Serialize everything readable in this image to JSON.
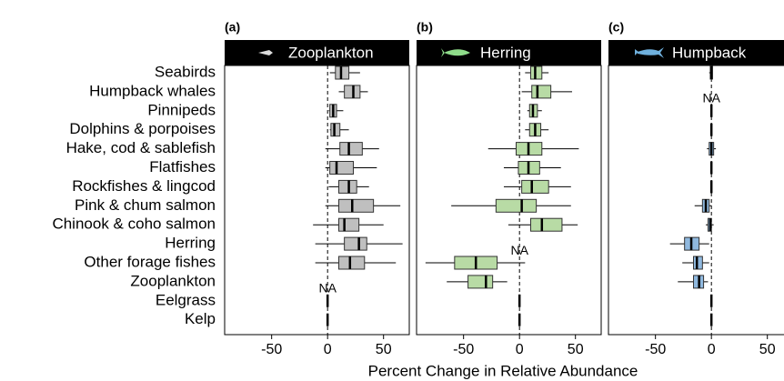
{
  "chart_data": {
    "type": "boxplot",
    "xlabel": "Percent Change in Relative Abundance",
    "categories": [
      "Seabirds",
      "Humpback whales",
      "Pinnipeds",
      "Dolphins & porpoises",
      "Hake, cod & sablefish",
      "Flatfishes",
      "Rockfishes & lingcod",
      "Pink & chum salmon",
      "Chinook & coho salmon",
      "Herring",
      "Other forage fishes",
      "Zooplankton",
      "Eelgrass",
      "Kelp"
    ],
    "xlim": [
      -92,
      73
    ],
    "xticks": [
      -50,
      0,
      50
    ],
    "missing_label": "NA",
    "panels": [
      {
        "label": "(a)",
        "title": "Zooplankton",
        "color": "#bfbfbf",
        "low": [
          2,
          10,
          1,
          2,
          -2,
          -2,
          1,
          -2,
          -13,
          -11,
          -11,
          null,
          0,
          0
        ],
        "q1": [
          7,
          15,
          2,
          3,
          11,
          2,
          10,
          10,
          10,
          15,
          10,
          null,
          0,
          0
        ],
        "median": [
          12,
          23,
          5,
          6,
          19,
          8,
          19,
          22,
          15,
          28,
          20,
          null,
          0,
          0
        ],
        "q3": [
          19,
          29,
          8,
          11,
          31,
          23,
          26,
          41,
          28,
          35,
          33,
          null,
          0,
          0
        ],
        "high": [
          29,
          36,
          14,
          19,
          46,
          44,
          37,
          65,
          50,
          67,
          61,
          null,
          0,
          0
        ]
      },
      {
        "label": "(b)",
        "title": "Herring",
        "color": "#b8dba5",
        "low": [
          5,
          2,
          7,
          5,
          -28,
          -14,
          -14,
          -61,
          -10,
          null,
          -84,
          -65,
          0,
          0
        ],
        "q1": [
          10,
          11,
          9,
          9,
          -3,
          -1,
          2,
          -21,
          10,
          null,
          -58,
          -46,
          0,
          0
        ],
        "median": [
          14,
          16,
          12,
          14,
          8,
          8,
          11,
          2,
          20,
          null,
          -39,
          -30,
          0,
          0
        ],
        "q3": [
          20,
          28,
          16,
          19,
          20,
          18,
          26,
          15,
          38,
          null,
          -20,
          -24,
          0,
          0
        ],
        "high": [
          26,
          47,
          20,
          26,
          53,
          37,
          46,
          46,
          52,
          null,
          5,
          -11,
          0,
          0
        ]
      },
      {
        "label": "(c)",
        "title": "Humpback",
        "color": "#8fb8de",
        "low": [
          -2,
          null,
          0,
          0,
          -4,
          0,
          0,
          -15,
          -5,
          -37,
          -26,
          -30,
          0,
          0
        ],
        "q1": [
          -1,
          null,
          0,
          0,
          -2,
          0,
          0,
          -8,
          -3,
          -24,
          -16,
          -16,
          0,
          0
        ],
        "median": [
          0,
          null,
          0,
          0,
          0,
          0,
          0,
          -5,
          -1,
          -18,
          -13,
          -11,
          0,
          0
        ],
        "q3": [
          1,
          null,
          0,
          0,
          2,
          0,
          0,
          -2,
          0,
          -11,
          -8,
          -7,
          0,
          0
        ],
        "high": [
          1,
          null,
          0,
          0,
          4,
          0,
          0,
          0,
          2,
          -2,
          -2,
          -3,
          0,
          0
        ]
      }
    ]
  }
}
